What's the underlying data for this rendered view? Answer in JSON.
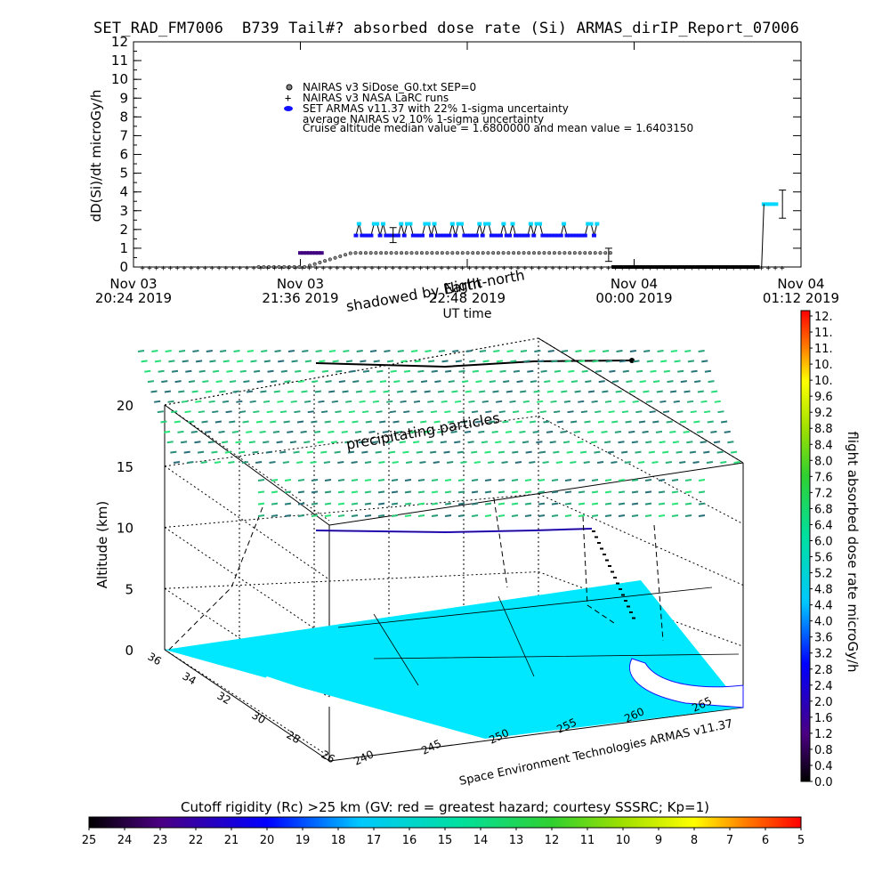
{
  "title": "SET_RAD_FM7006  B739 Tail#? absorbed dose rate (Si) ARMAS_dirIP_Report_07006",
  "chart_data": [
    {
      "type": "scatter",
      "ylabel": "dD(Si)/dt microGy/h",
      "xlabel": "UT time",
      "ylim": [
        0,
        12
      ],
      "yticks": [
        "0",
        "1",
        "2",
        "3",
        "4",
        "5",
        "6",
        "7",
        "8",
        "9",
        "10",
        "11",
        "12"
      ],
      "xticks": [
        {
          "line1": "Nov 03",
          "line2": "20:24 2019"
        },
        {
          "line1": "Nov 03",
          "line2": "21:36 2019"
        },
        {
          "line1": "",
          "line2": "22:48 2019"
        },
        {
          "line1": "Nov 04",
          "line2": "00:00 2019"
        },
        {
          "line1": "Nov 04",
          "line2": "01:12 2019"
        }
      ],
      "xlim_minutes_from_first_tick": [
        0,
        288
      ],
      "legend": [
        "NAIRAS v3 SiDose_G0.txt SEP=0",
        "NAIRAS v3 NASA LaRC runs",
        "SET ARMAS v11.37 with 22% 1-sigma uncertainty",
        "average NAIRAS v2 10% 1-sigma uncertainty",
        "Cruise altitude median value = 1.6800000 and mean value = 1.6403150"
      ],
      "legend_position": "top-center",
      "series": [
        {
          "name": "NAIRAS v3 SiDose_G0.txt SEP=0",
          "level": 0.75,
          "start": 94,
          "end": 206
        },
        {
          "name": "SET ARMAS v11.37 with 22% 1-sigma uncertainty",
          "high": 2.3,
          "low": 1.68,
          "start": 96,
          "end": 201
        }
      ]
    },
    {
      "type": "3d-scatter",
      "ylabel": "Altitude (km)",
      "zticks": [
        "0",
        "5",
        "10",
        "15",
        "20"
      ],
      "lat_ticks": [
        "36",
        "34",
        "32",
        "30",
        "28",
        "26"
      ],
      "lon_ticks": [
        "240",
        "245",
        "250",
        "255",
        "260",
        "265"
      ],
      "annotations": [
        "precipitating particles",
        "shadowed by Earth",
        "Night-north"
      ],
      "credit": "Space Environment Technologies ARMAS v11.37"
    }
  ],
  "colorbar_right": {
    "label": "flight absorbed dose rate microGy/h",
    "ticks": [
      "12.",
      "11.",
      "11.",
      "10.",
      "10.",
      "9.6",
      "9.2",
      "8.8",
      "8.4",
      "8.0",
      "7.6",
      "7.2",
      "6.8",
      "6.4",
      "6.0",
      "5.6",
      "5.2",
      "4.8",
      "4.4",
      "4.0",
      "3.6",
      "3.2",
      "2.8",
      "2.4",
      "2.0",
      "1.6",
      "1.2",
      "0.8",
      "0.4",
      "0.0"
    ]
  },
  "colorbar_bottom": {
    "label": "Cutoff rigidity (Rc) >25 km (GV: red = greatest hazard; courtesy SSSRC; Kp=1)",
    "ticks": [
      "25",
      "24",
      "23",
      "22",
      "21",
      "20",
      "19",
      "18",
      "17",
      "16",
      "15",
      "14",
      "13",
      "12",
      "11",
      "10",
      "9",
      "8",
      "7",
      "6",
      "5"
    ]
  },
  "colors": {
    "armas_high": "#00d8ff",
    "armas_mid": "#1010ff",
    "armas_low": "#400080",
    "ground": "#00e8ff",
    "particles": "#33dd88"
  }
}
